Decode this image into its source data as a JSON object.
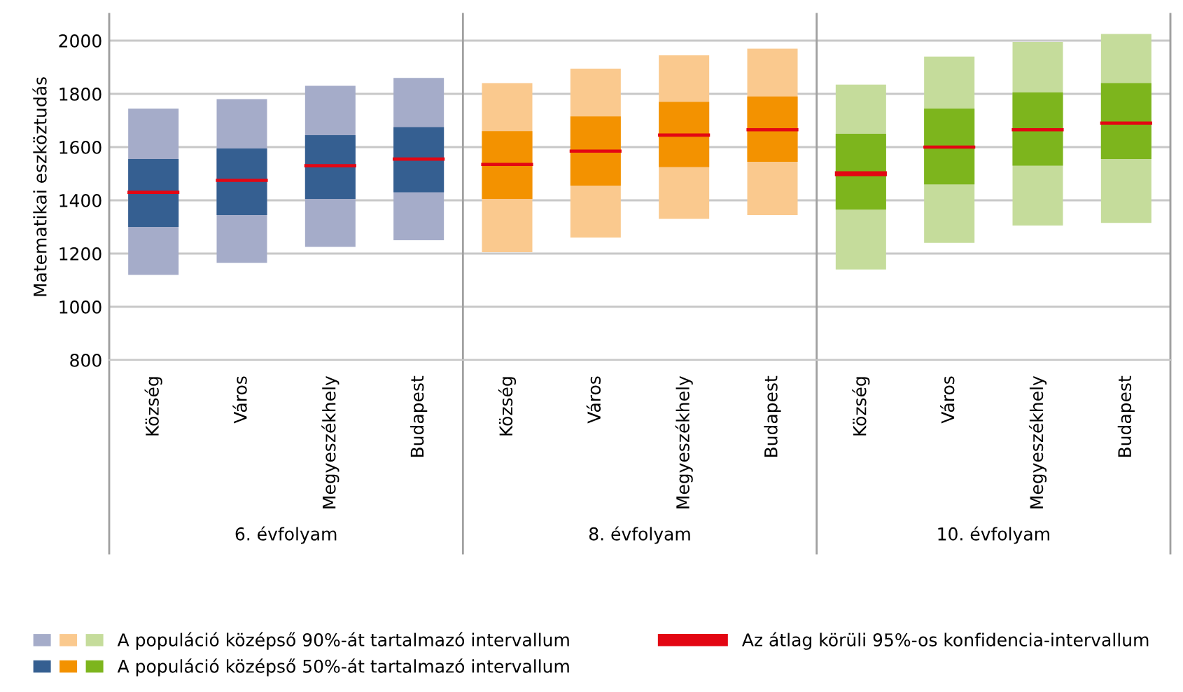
{
  "chart_data": {
    "type": "bar",
    "ylabel": "Matematikai eszköztudás",
    "categories": [
      "Község",
      "Város",
      "Megyeszékhely",
      "Budapest",
      "Község",
      "Város",
      "Megyeszékhely",
      "Budapest",
      "Község",
      "Város",
      "Megyeszékhely",
      "Budapest"
    ],
    "series": [
      {
        "name": "A populáció középső 90%-át tartalmazó intervallum",
        "colors": [
          "#a5acc9",
          "#a5acc9",
          "#a5acc9",
          "#a5acc9",
          "#fac98e",
          "#fac98e",
          "#fac98e",
          "#fac98e",
          "#c5dc9b",
          "#c5dc9b",
          "#c5dc9b",
          "#c5dc9b"
        ],
        "base": [
          1120,
          1165,
          1225,
          1250,
          1205,
          1260,
          1330,
          1345,
          1140,
          1240,
          1305,
          1315
        ],
        "values": [
          625,
          615,
          605,
          610,
          635,
          635,
          615,
          625,
          695,
          700,
          690,
          710
        ]
      },
      {
        "name": "A populáció középső 50%-át tartalmazó intervallum",
        "colors": [
          "#355f91",
          "#355f91",
          "#355f91",
          "#355f91",
          "#f39200",
          "#f39200",
          "#f39200",
          "#f39200",
          "#7db51d",
          "#7db51d",
          "#7db51d",
          "#7db51d"
        ],
        "base": [
          1300,
          1345,
          1405,
          1430,
          1405,
          1455,
          1525,
          1545,
          1365,
          1460,
          1530,
          1555
        ],
        "values": [
          255,
          250,
          240,
          245,
          255,
          260,
          245,
          245,
          285,
          285,
          275,
          285
        ]
      },
      {
        "name": "Az átlag körüli 95%-os konfidencia-intervallum",
        "color": "#e30613",
        "base": [
          1424,
          1469,
          1524,
          1549,
          1529,
          1579,
          1639,
          1659,
          1491,
          1594,
          1659,
          1684
        ],
        "values": [
          12,
          12,
          12,
          12,
          12,
          12,
          12,
          12,
          18,
          12,
          12,
          12
        ]
      }
    ],
    "ylim": [
      800,
      2100
    ],
    "yticks": [
      800,
      1000,
      1200,
      1400,
      1600,
      1800,
      2000
    ],
    "grid": "y",
    "legend": "bottom",
    "annotations": [
      "6. évfolyam",
      "8. évfolyam",
      "10. évfolyam"
    ]
  }
}
